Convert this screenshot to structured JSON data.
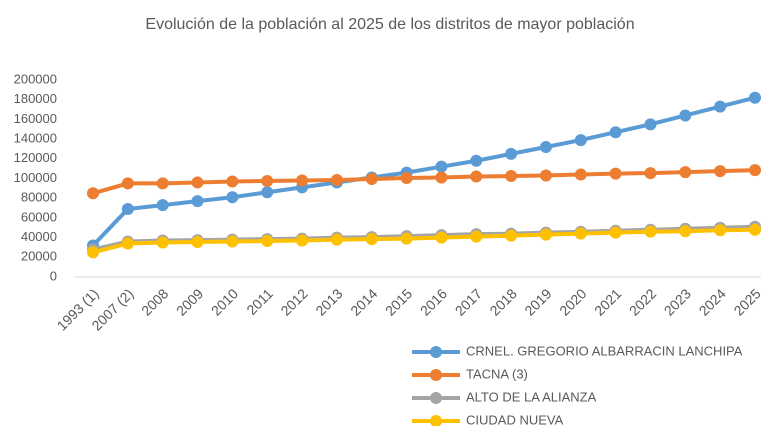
{
  "chart_data": {
    "type": "line",
    "title": "Evolución de la población al 2025 de los distritos de mayor población",
    "categories": [
      "1993 (1)",
      "2007 (2)",
      "2008",
      "2009",
      "2010",
      "2011",
      "2012",
      "2013",
      "2014",
      "2015",
      "2016",
      "2017",
      "2018",
      "2019",
      "2020",
      "2021",
      "2022",
      "2023",
      "2024",
      "2025"
    ],
    "series": [
      {
        "name": "CRNEL. GREGORIO ALBARRACIN LANCHIPA",
        "color": "#5b9bd5",
        "values": [
          32000,
          69000,
          73000,
          77000,
          81000,
          86000,
          91000,
          96000,
          101000,
          106000,
          112000,
          118000,
          125000,
          132000,
          139000,
          147000,
          155000,
          164000,
          173000,
          182000
        ]
      },
      {
        "name": "TACNA (3)",
        "color": "#ed7d31",
        "values": [
          85000,
          95000,
          95000,
          96000,
          97000,
          97500,
          98000,
          98500,
          99500,
          100500,
          101000,
          102000,
          102500,
          103000,
          104000,
          105000,
          105500,
          106500,
          107500,
          108500
        ]
      },
      {
        "name": "ALTO DE LA ALIANZA",
        "color": "#a5a5a5",
        "values": [
          28000,
          36000,
          37000,
          37500,
          38000,
          38500,
          39000,
          40000,
          40500,
          41500,
          42500,
          43500,
          44000,
          45000,
          46000,
          47000,
          48000,
          49000,
          50000,
          51000
        ]
      },
      {
        "name": "CIUDAD NUEVA",
        "color": "#ffc000",
        "values": [
          25000,
          34000,
          35000,
          35500,
          36000,
          36500,
          37000,
          38000,
          38500,
          39000,
          40000,
          41000,
          42000,
          43000,
          44000,
          45000,
          46000,
          46500,
          47500,
          48000
        ]
      }
    ],
    "ylim": [
      0,
      200000
    ],
    "yticks": [
      0,
      20000,
      40000,
      60000,
      80000,
      100000,
      120000,
      140000,
      160000,
      180000,
      200000
    ],
    "grid": false
  }
}
